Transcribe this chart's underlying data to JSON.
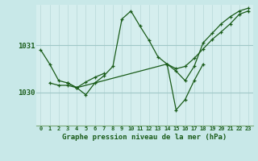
{
  "background_color": "#c8e8e8",
  "plot_bg_color": "#d5eeee",
  "grid_color_v": "#b8d8d8",
  "grid_color_h": "#a0c8c8",
  "line_color": "#1a5c1a",
  "title": "Graphe pression niveau de la mer (hPa)",
  "ylim": [
    1029.3,
    1031.85
  ],
  "xlim": [
    -0.5,
    23.5
  ],
  "yticks": [
    1030,
    1031
  ],
  "xticks": [
    0,
    1,
    2,
    3,
    4,
    5,
    6,
    7,
    8,
    9,
    10,
    11,
    12,
    13,
    14,
    15,
    16,
    17,
    18,
    19,
    20,
    21,
    22,
    23
  ],
  "series": [
    [
      1030.9,
      1030.6,
      1030.25,
      1030.2,
      1030.1,
      1029.95,
      1030.2,
      1030.35,
      1030.55,
      1031.55,
      1031.72,
      1031.4,
      1031.1,
      1030.75,
      1030.6,
      1030.45,
      1030.25,
      1030.55,
      1031.05,
      1031.25,
      1031.45,
      1031.6,
      1031.72,
      1031.78
    ],
    [
      null,
      1030.2,
      1030.15,
      1030.15,
      1030.1,
      1030.22,
      1030.32,
      1030.4,
      null,
      null,
      null,
      null,
      null,
      null,
      null,
      null,
      null,
      null,
      null,
      null,
      null,
      null,
      null,
      null
    ],
    [
      null,
      null,
      null,
      1030.2,
      1030.1,
      null,
      null,
      null,
      null,
      null,
      null,
      null,
      null,
      null,
      1030.6,
      1030.5,
      1030.55,
      1030.72,
      1030.92,
      1031.12,
      1031.28,
      1031.45,
      1031.65,
      1031.72
    ],
    [
      null,
      null,
      null,
      null,
      null,
      null,
      null,
      null,
      null,
      null,
      null,
      null,
      null,
      null,
      1030.6,
      1029.63,
      1029.85,
      1030.25,
      1030.6,
      null,
      null,
      null,
      null,
      null
    ]
  ]
}
